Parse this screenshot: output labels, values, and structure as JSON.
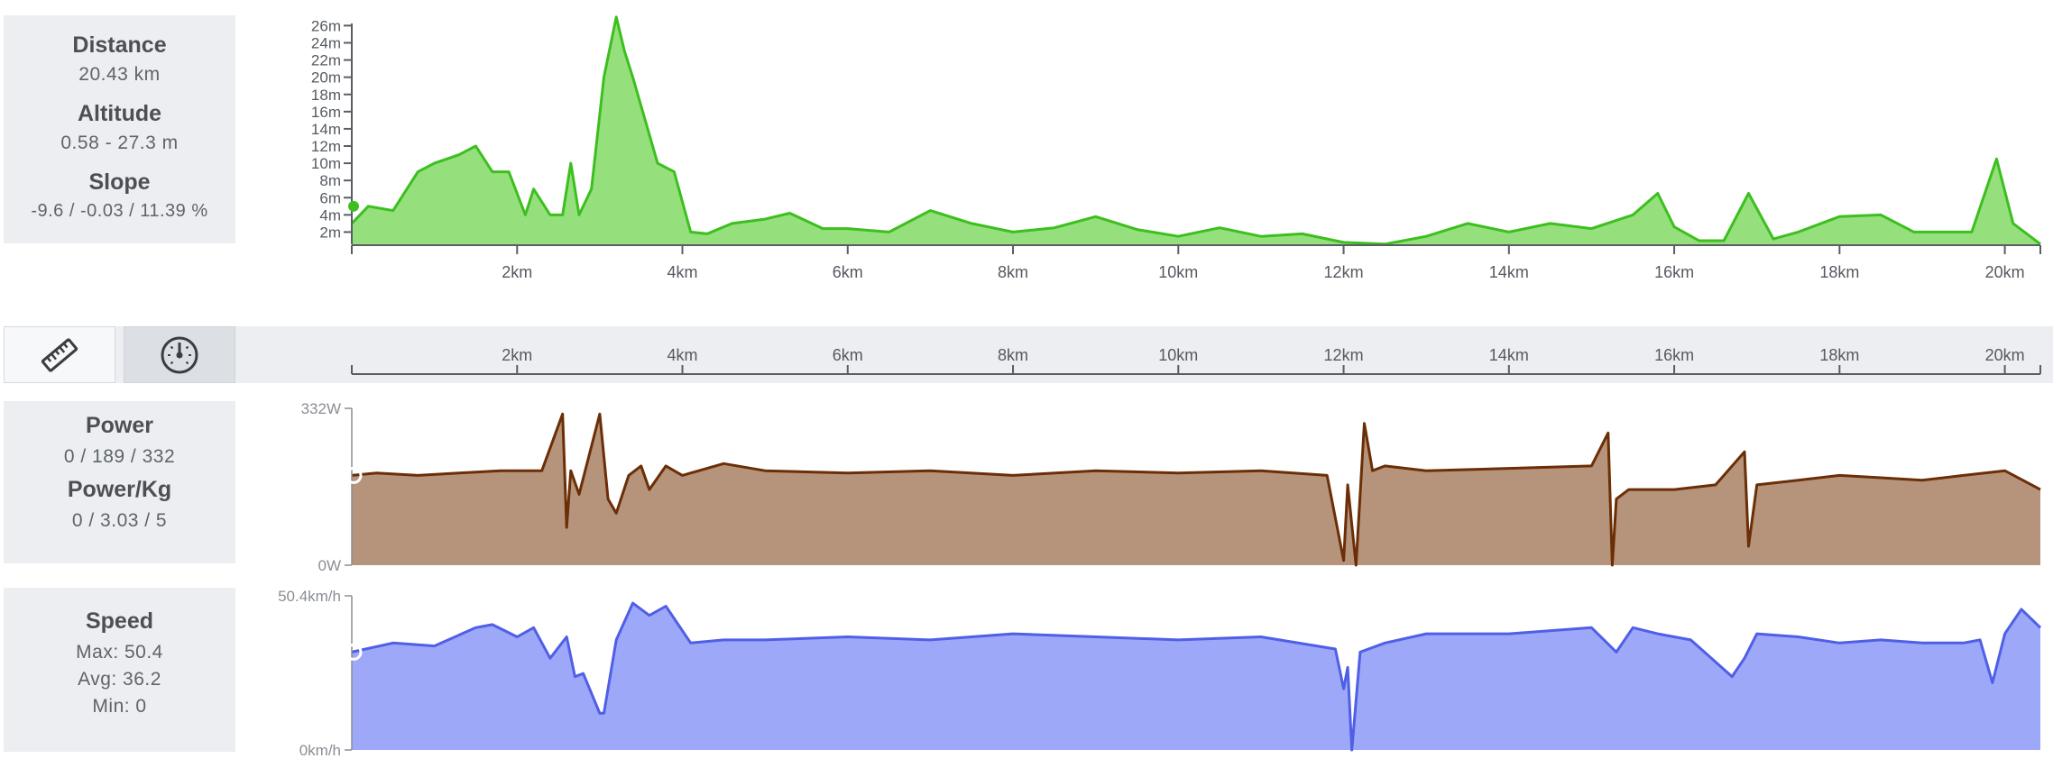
{
  "elevation_panel": {
    "distance_title": "Distance",
    "distance_value": "20.43 km",
    "altitude_title": "Altitude",
    "altitude_value": "0.58 - 27.3 m",
    "slope_title": "Slope",
    "slope_value": "-9.6 / -0.03 / 11.39 %"
  },
  "power_panel": {
    "power_title": "Power",
    "power_value": "0 / 189 / 332",
    "powerkg_title": "Power/Kg",
    "powerkg_value": "0 / 3.03 / 5"
  },
  "speed_panel": {
    "speed_title": "Speed",
    "max": "Max: 50.4",
    "avg": "Avg: 36.2",
    "min": "Min: 0"
  },
  "tabs": [
    {
      "icon": "ruler-icon",
      "active": false
    },
    {
      "icon": "speedometer-icon",
      "active": true
    }
  ],
  "colors": {
    "elevation_line": "#3cbf1f",
    "elevation_fill": "#95e07d",
    "power_line": "#6b2e06",
    "power_fill": "#b6947c",
    "speed_line": "#4f5fe6",
    "speed_fill": "#9ea8f8",
    "panel_bg": "#eceef1"
  },
  "chart_data": [
    {
      "type": "area",
      "name": "elevation",
      "x_tick_labels": [
        "2km",
        "4km",
        "6km",
        "8km",
        "10km",
        "12km",
        "14km",
        "16km",
        "18km",
        "20km"
      ],
      "y_tick_labels": [
        "2m",
        "4m",
        "6m",
        "8m",
        "10m",
        "12m",
        "14m",
        "16m",
        "18m",
        "20m",
        "22m",
        "24m",
        "26m"
      ],
      "xlim": [
        0,
        20.43
      ],
      "ylim": [
        0.58,
        27.3
      ],
      "x": [
        0,
        0.2,
        0.5,
        0.8,
        1.0,
        1.3,
        1.5,
        1.7,
        1.9,
        2.1,
        2.2,
        2.4,
        2.55,
        2.65,
        2.75,
        2.9,
        3.05,
        3.2,
        3.3,
        3.4,
        3.55,
        3.7,
        3.9,
        4.1,
        4.3,
        4.6,
        5.0,
        5.3,
        5.7,
        6.0,
        6.5,
        7.0,
        7.5,
        8.0,
        8.5,
        9.0,
        9.5,
        10.0,
        10.5,
        11.0,
        11.5,
        12.0,
        12.5,
        13.0,
        13.5,
        14.0,
        14.5,
        15.0,
        15.5,
        15.8,
        16.0,
        16.3,
        16.6,
        16.9,
        17.2,
        17.5,
        18.0,
        18.5,
        18.9,
        19.3,
        19.6,
        19.9,
        20.1,
        20.43
      ],
      "y": [
        3,
        5,
        4.5,
        9,
        10,
        11,
        12,
        9,
        9,
        4,
        7,
        4,
        4,
        10,
        4,
        7,
        20,
        27,
        23,
        20,
        15,
        10,
        9,
        2,
        1.8,
        3,
        3.5,
        4.2,
        2.4,
        2.4,
        2,
        4.5,
        3,
        2,
        2.5,
        3.8,
        2.3,
        1.5,
        2.5,
        1.5,
        1.8,
        0.8,
        0.6,
        1.5,
        3,
        2,
        3,
        2.4,
        4,
        6.5,
        2.6,
        1,
        1,
        6.5,
        1.2,
        2,
        3.8,
        4,
        2,
        2,
        2,
        10.5,
        3,
        0.6
      ]
    },
    {
      "type": "area",
      "name": "power",
      "x_tick_labels": [
        "2km",
        "4km",
        "6km",
        "8km",
        "10km",
        "12km",
        "14km",
        "16km",
        "18km",
        "20km"
      ],
      "y_tick_labels": [
        "0W",
        "332W"
      ],
      "xlim": [
        0,
        20.43
      ],
      "ylim": [
        0,
        332
      ],
      "x": [
        0,
        0.3,
        0.8,
        1.3,
        1.8,
        2.3,
        2.55,
        2.6,
        2.65,
        2.75,
        3.0,
        3.1,
        3.2,
        3.35,
        3.5,
        3.6,
        3.8,
        4.0,
        4.5,
        5.0,
        6.0,
        7.0,
        8.0,
        9.0,
        10.0,
        11.0,
        11.8,
        12.0,
        12.05,
        12.15,
        12.25,
        12.35,
        12.5,
        13.0,
        14.0,
        15.0,
        15.2,
        15.25,
        15.3,
        15.45,
        16.0,
        16.5,
        16.85,
        16.9,
        17.0,
        17.5,
        18.0,
        18.5,
        19.0,
        19.5,
        20.0,
        20.43
      ],
      "y": [
        190,
        195,
        190,
        195,
        200,
        200,
        320,
        80,
        200,
        150,
        320,
        140,
        110,
        190,
        210,
        160,
        210,
        190,
        215,
        200,
        195,
        200,
        190,
        200,
        195,
        200,
        190,
        10,
        170,
        0,
        300,
        200,
        210,
        200,
        205,
        210,
        280,
        0,
        140,
        160,
        160,
        170,
        240,
        40,
        170,
        180,
        190,
        185,
        180,
        190,
        200,
        160
      ]
    },
    {
      "type": "area",
      "name": "speed",
      "x_tick_labels": [
        "2km",
        "4km",
        "6km",
        "8km",
        "10km",
        "12km",
        "14km",
        "16km",
        "18km",
        "20km"
      ],
      "y_tick_labels": [
        "0km/h",
        "50.4km/h"
      ],
      "xlim": [
        0,
        20.43
      ],
      "ylim": [
        0,
        50.4
      ],
      "x": [
        0,
        0.5,
        1.0,
        1.5,
        1.7,
        2.0,
        2.2,
        2.4,
        2.6,
        2.7,
        2.8,
        3.0,
        3.05,
        3.2,
        3.4,
        3.6,
        3.8,
        4.1,
        4.5,
        5.0,
        6.0,
        7.0,
        8.0,
        9.0,
        10.0,
        11.0,
        11.9,
        12.0,
        12.05,
        12.1,
        12.2,
        12.5,
        13.0,
        14.0,
        15.0,
        15.3,
        15.5,
        15.8,
        16.2,
        16.7,
        16.85,
        17.0,
        17.5,
        18.0,
        18.5,
        19.0,
        19.5,
        19.7,
        19.85,
        20.0,
        20.2,
        20.43
      ],
      "y": [
        32,
        35,
        34,
        40,
        41,
        37,
        40,
        30,
        37,
        24,
        25,
        12,
        12,
        36,
        48,
        44,
        47,
        35,
        36,
        36,
        37,
        36,
        38,
        37,
        36,
        37,
        33,
        20,
        27,
        0,
        32,
        35,
        38,
        38,
        40,
        32,
        40,
        38,
        36,
        24,
        30,
        38,
        37,
        35,
        36,
        35,
        35,
        36,
        22,
        38,
        46,
        40
      ]
    }
  ]
}
